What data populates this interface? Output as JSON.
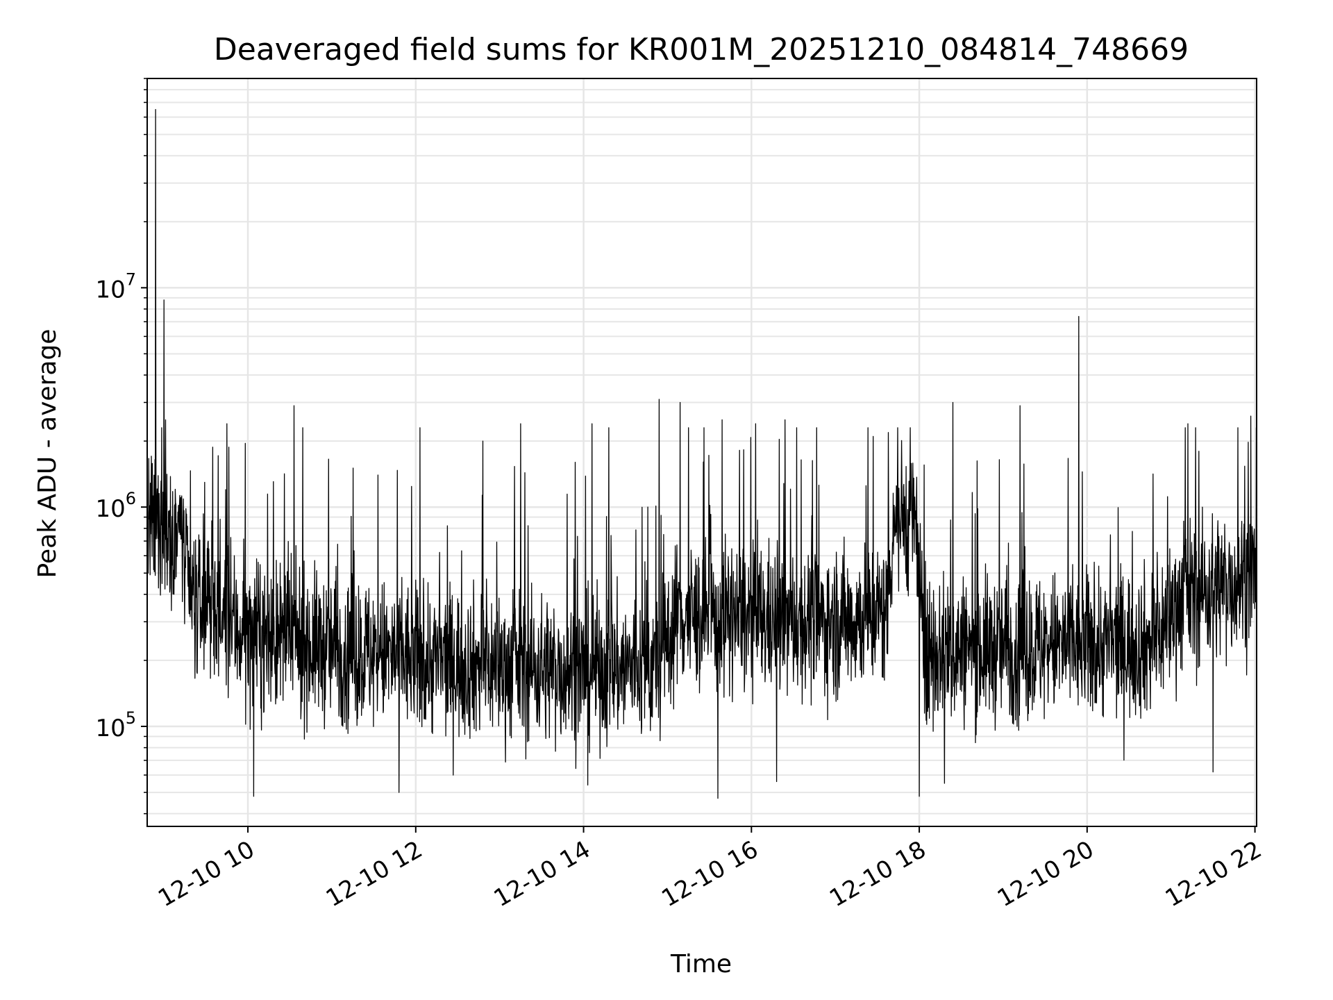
{
  "chart_data": {
    "type": "line",
    "title": "Deaveraged field sums for KR001M_20251210_084814_748669",
    "xlabel": "Time",
    "ylabel": "Peak ADU - average",
    "yscale": "log",
    "ylim": [
      35000,
      90000000
    ],
    "xlim_hours": [
      8.8,
      22.02
    ],
    "x_ticks": [
      {
        "label": "12-10 10",
        "hour": 10
      },
      {
        "label": "12-10 12",
        "hour": 12
      },
      {
        "label": "12-10 14",
        "hour": 14
      },
      {
        "label": "12-10 16",
        "hour": 16
      },
      {
        "label": "12-10 18",
        "hour": 18
      },
      {
        "label": "12-10 20",
        "hour": 20
      },
      {
        "label": "12-10 22",
        "hour": 22
      }
    ],
    "y_ticks": [
      {
        "base": "10",
        "exp": "5",
        "value": 100000
      },
      {
        "base": "10",
        "exp": "6",
        "value": 1000000
      },
      {
        "base": "10",
        "exp": "7",
        "value": 10000000
      }
    ],
    "grid": true,
    "series": [
      {
        "name": "field sums",
        "color": "#000000",
        "points_per_hour": 260,
        "baseline_by_hour": [
          {
            "hour": 8.8,
            "value": 800000
          },
          {
            "hour": 9.2,
            "value": 800000
          },
          {
            "hour": 9.3,
            "value": 380000
          },
          {
            "hour": 10.0,
            "value": 260000
          },
          {
            "hour": 12.0,
            "value": 200000
          },
          {
            "hour": 14.0,
            "value": 180000
          },
          {
            "hour": 14.9,
            "value": 190000
          },
          {
            "hour": 15.1,
            "value": 320000
          },
          {
            "hour": 16.3,
            "value": 300000
          },
          {
            "hour": 17.0,
            "value": 300000
          },
          {
            "hour": 17.6,
            "value": 330000
          },
          {
            "hour": 17.7,
            "value": 900000
          },
          {
            "hour": 17.95,
            "value": 900000
          },
          {
            "hour": 18.05,
            "value": 220000
          },
          {
            "hour": 19.2,
            "value": 230000
          },
          {
            "hour": 20.8,
            "value": 240000
          },
          {
            "hour": 21.1,
            "value": 380000
          },
          {
            "hour": 22.02,
            "value": 500000
          }
        ],
        "spikes": [
          {
            "hour": 8.9,
            "value": 65000000
          },
          {
            "hour": 9.0,
            "value": 8800000
          },
          {
            "hour": 9.02,
            "value": 2500000
          },
          {
            "hour": 9.75,
            "value": 2400000
          },
          {
            "hour": 10.55,
            "value": 2900000
          },
          {
            "hour": 11.55,
            "value": 1400000
          },
          {
            "hour": 12.05,
            "value": 2300000
          },
          {
            "hour": 12.8,
            "value": 2000000
          },
          {
            "hour": 13.25,
            "value": 2400000
          },
          {
            "hour": 13.9,
            "value": 1600000
          },
          {
            "hour": 14.1,
            "value": 2400000
          },
          {
            "hour": 14.3,
            "value": 2300000
          },
          {
            "hour": 14.9,
            "value": 3100000
          },
          {
            "hour": 15.15,
            "value": 3000000
          },
          {
            "hour": 15.65,
            "value": 2500000
          },
          {
            "hour": 16.05,
            "value": 2400000
          },
          {
            "hour": 16.4,
            "value": 2500000
          },
          {
            "hour": 17.45,
            "value": 2100000
          },
          {
            "hour": 18.4,
            "value": 3000000
          },
          {
            "hour": 19.2,
            "value": 2900000
          },
          {
            "hour": 19.9,
            "value": 7400000
          },
          {
            "hour": 21.2,
            "value": 2400000
          },
          {
            "hour": 21.95,
            "value": 2600000
          }
        ],
        "dips": [
          {
            "hour": 10.07,
            "value": 48000
          },
          {
            "hour": 11.8,
            "value": 50000
          },
          {
            "hour": 14.05,
            "value": 54000
          },
          {
            "hour": 15.6,
            "value": 47000
          },
          {
            "hour": 16.3,
            "value": 56000
          },
          {
            "hour": 18.0,
            "value": 48000
          },
          {
            "hour": 18.3,
            "value": 55000
          },
          {
            "hour": 21.5,
            "value": 62000
          }
        ]
      }
    ]
  }
}
